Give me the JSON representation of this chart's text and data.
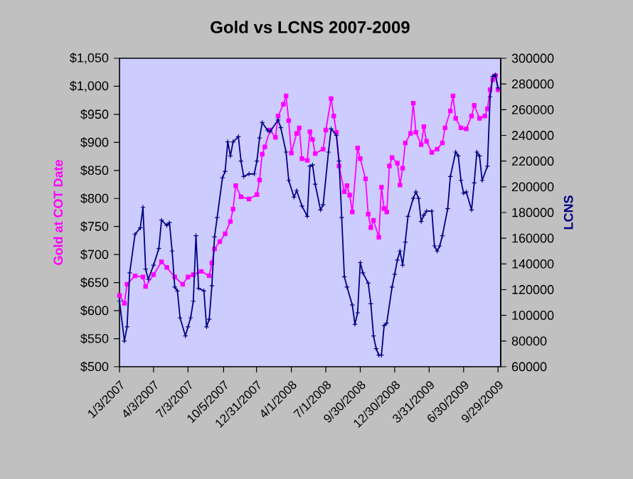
{
  "chart_data": {
    "type": "line",
    "title": "Gold vs LCNS  2007-2009",
    "ylabel": "Gold at COT Date",
    "y2label": "LCNS",
    "xlim": [
      "2007-01-03",
      "2009-10-06"
    ],
    "xticks": [
      {
        "value": "2007-01-03",
        "label": "1/3/2007"
      },
      {
        "value": "2007-04-03",
        "label": "4/3/2007"
      },
      {
        "value": "2007-07-03",
        "label": "7/3/2007"
      },
      {
        "value": "2007-10-05",
        "label": "10/5/2007"
      },
      {
        "value": "2007-12-31",
        "label": "12/31/2007"
      },
      {
        "value": "2008-04-01",
        "label": "4/1/2008"
      },
      {
        "value": "2008-07-01",
        "label": "7/1/2008"
      },
      {
        "value": "2008-09-30",
        "label": "9/30/2008"
      },
      {
        "value": "2008-12-30",
        "label": "12/30/2008"
      },
      {
        "value": "2009-03-31",
        "label": "3/31/2009"
      },
      {
        "value": "2009-06-30",
        "label": "6/30/2009"
      },
      {
        "value": "2009-09-29",
        "label": "9/29/2009"
      }
    ],
    "ylim": [
      500,
      1050
    ],
    "yticks": [
      {
        "value": 500,
        "label": "$500"
      },
      {
        "value": 550,
        "label": "$550"
      },
      {
        "value": 600,
        "label": "$600"
      },
      {
        "value": 650,
        "label": "$650"
      },
      {
        "value": 700,
        "label": "$700"
      },
      {
        "value": 750,
        "label": "$750"
      },
      {
        "value": 800,
        "label": "$800"
      },
      {
        "value": 850,
        "label": "$850"
      },
      {
        "value": 900,
        "label": "$900"
      },
      {
        "value": 950,
        "label": "$950"
      },
      {
        "value": 1000,
        "label": "$1,000"
      },
      {
        "value": 1050,
        "label": "$1,050"
      }
    ],
    "y2lim": [
      60000,
      300000
    ],
    "y2ticks": [
      60000,
      80000,
      100000,
      120000,
      140000,
      160000,
      180000,
      200000,
      220000,
      240000,
      260000,
      280000,
      300000
    ],
    "series": [
      {
        "color": "#ff00ff",
        "marker": "square",
        "x": [
          "2007-01-03",
          "2007-01-16",
          "2007-01-23",
          "2007-02-13",
          "2007-03-06",
          "2007-03-13",
          "2007-04-03",
          "2007-04-24",
          "2007-05-08",
          "2007-05-29",
          "2007-06-19",
          "2007-07-03",
          "2007-07-17",
          "2007-08-07",
          "2007-08-28",
          "2007-09-04",
          "2007-09-11",
          "2007-09-25",
          "2007-10-09",
          "2007-10-23",
          "2007-10-30",
          "2007-11-06",
          "2007-11-20",
          "2007-12-11",
          "2008-01-01",
          "2008-01-08",
          "2008-01-15",
          "2008-01-22",
          "2008-02-05",
          "2008-02-19",
          "2008-02-26",
          "2008-03-11",
          "2008-03-18",
          "2008-03-25",
          "2008-04-01",
          "2008-04-15",
          "2008-04-22",
          "2008-04-29",
          "2008-05-13",
          "2008-05-20",
          "2008-05-27",
          "2008-06-03",
          "2008-06-24",
          "2008-07-01",
          "2008-07-15",
          "2008-07-22",
          "2008-07-29",
          "2008-08-05",
          "2008-08-19",
          "2008-08-26",
          "2008-09-02",
          "2008-09-09",
          "2008-09-23",
          "2008-09-30",
          "2008-10-14",
          "2008-10-21",
          "2008-10-28",
          "2008-11-04",
          "2008-11-18",
          "2008-11-25",
          "2008-12-02",
          "2008-12-09",
          "2008-12-16",
          "2008-12-23",
          "2009-01-06",
          "2009-01-13",
          "2009-01-20",
          "2009-01-27",
          "2009-02-10",
          "2009-02-17",
          "2009-02-24",
          "2009-03-10",
          "2009-03-17",
          "2009-03-24",
          "2009-04-07",
          "2009-04-21",
          "2009-05-05",
          "2009-05-12",
          "2009-05-26",
          "2009-06-02",
          "2009-06-09",
          "2009-06-23",
          "2009-07-07",
          "2009-07-21",
          "2009-07-28",
          "2009-08-11",
          "2009-08-25",
          "2009-09-01",
          "2009-09-08",
          "2009-09-15",
          "2009-09-22",
          "2009-09-29"
        ],
        "values": [
          627,
          613,
          647,
          662,
          660,
          643,
          664,
          687,
          677,
          660,
          647,
          660,
          664,
          670,
          662,
          685,
          710,
          723,
          737,
          759,
          781,
          823,
          803,
          799,
          807,
          833,
          879,
          892,
          922,
          909,
          947,
          968,
          983,
          939,
          881,
          916,
          926,
          871,
          868,
          919,
          905,
          880,
          888,
          922,
          978,
          947,
          918,
          858,
          812,
          823,
          806,
          776,
          890,
          871,
          835,
          772,
          748,
          761,
          731,
          820,
          782,
          776,
          858,
          873,
          863,
          824,
          854,
          899,
          916,
          970,
          918,
          896,
          928,
          902,
          882,
          888,
          899,
          926,
          956,
          983,
          943,
          926,
          924,
          947,
          966,
          943,
          947,
          960,
          994,
          1012,
          1019,
          994
        ]
      },
      {
        "color": "#000080",
        "marker": "cross",
        "axis": "y2",
        "x": [
          "2007-01-03",
          "2007-01-16",
          "2007-01-23",
          "2007-01-30",
          "2007-02-13",
          "2007-02-27",
          "2007-03-06",
          "2007-03-13",
          "2007-03-20",
          "2007-04-03",
          "2007-04-17",
          "2007-04-24",
          "2007-05-08",
          "2007-05-15",
          "2007-05-22",
          "2007-05-29",
          "2007-06-05",
          "2007-06-12",
          "2007-06-26",
          "2007-07-03",
          "2007-07-10",
          "2007-07-17",
          "2007-07-24",
          "2007-07-31",
          "2007-08-14",
          "2007-08-21",
          "2007-08-28",
          "2007-09-04",
          "2007-09-11",
          "2007-09-18",
          "2007-10-02",
          "2007-10-09",
          "2007-10-16",
          "2007-10-23",
          "2007-10-30",
          "2007-11-13",
          "2007-11-20",
          "2007-11-27",
          "2007-12-11",
          "2007-12-25",
          "2008-01-01",
          "2008-01-08",
          "2008-01-15",
          "2008-01-29",
          "2008-02-05",
          "2008-02-26",
          "2008-03-04",
          "2008-03-18",
          "2008-03-25",
          "2008-04-08",
          "2008-04-15",
          "2008-04-29",
          "2008-05-13",
          "2008-05-20",
          "2008-05-27",
          "2008-06-03",
          "2008-06-17",
          "2008-06-24",
          "2008-07-08",
          "2008-07-15",
          "2008-07-29",
          "2008-08-05",
          "2008-08-12",
          "2008-08-19",
          "2008-08-26",
          "2008-09-09",
          "2008-09-16",
          "2008-09-23",
          "2008-09-30",
          "2008-10-07",
          "2008-10-21",
          "2008-10-28",
          "2008-11-04",
          "2008-11-11",
          "2008-11-18",
          "2008-11-25",
          "2008-12-02",
          "2008-12-09",
          "2008-12-23",
          "2008-12-30",
          "2009-01-06",
          "2009-01-13",
          "2009-01-20",
          "2009-01-27",
          "2009-02-03",
          "2009-02-17",
          "2009-02-24",
          "2009-03-03",
          "2009-03-10",
          "2009-03-17",
          "2009-03-24",
          "2009-04-07",
          "2009-04-14",
          "2009-04-21",
          "2009-04-28",
          "2009-05-05",
          "2009-05-19",
          "2009-05-26",
          "2009-06-09",
          "2009-06-16",
          "2009-06-23",
          "2009-06-30",
          "2009-07-07",
          "2009-07-21",
          "2009-07-28",
          "2009-08-04",
          "2009-08-11",
          "2009-08-18",
          "2009-09-01",
          "2009-09-08",
          "2009-09-15",
          "2009-09-22",
          "2009-09-29"
        ],
        "values": [
          111000,
          80000,
          91000,
          133000,
          163000,
          168000,
          184000,
          136000,
          128000,
          139000,
          152000,
          174000,
          170000,
          172000,
          150000,
          122000,
          119000,
          98000,
          84000,
          91000,
          98000,
          111000,
          162000,
          121000,
          119000,
          91000,
          97000,
          123000,
          161000,
          176000,
          207000,
          212000,
          235000,
          224000,
          235000,
          239000,
          220000,
          208000,
          210000,
          210000,
          220000,
          238000,
          250000,
          244000,
          243000,
          252000,
          246000,
          227000,
          205000,
          192000,
          197000,
          185000,
          177000,
          216000,
          217000,
          202000,
          182000,
          186000,
          227000,
          245000,
          240000,
          220000,
          176000,
          130000,
          122000,
          108000,
          93000,
          102000,
          141000,
          133000,
          125000,
          109000,
          84000,
          74000,
          69000,
          69000,
          92000,
          94000,
          122000,
          132000,
          143000,
          150000,
          139000,
          157000,
          177000,
          191000,
          196000,
          191000,
          173000,
          178000,
          181000,
          181000,
          154000,
          150000,
          154000,
          162000,
          183000,
          208000,
          227000,
          224000,
          205000,
          195000,
          196000,
          182000,
          203000,
          227000,
          224000,
          205000,
          216000,
          270000,
          286000,
          287000,
          277000
        ]
      }
    ]
  }
}
